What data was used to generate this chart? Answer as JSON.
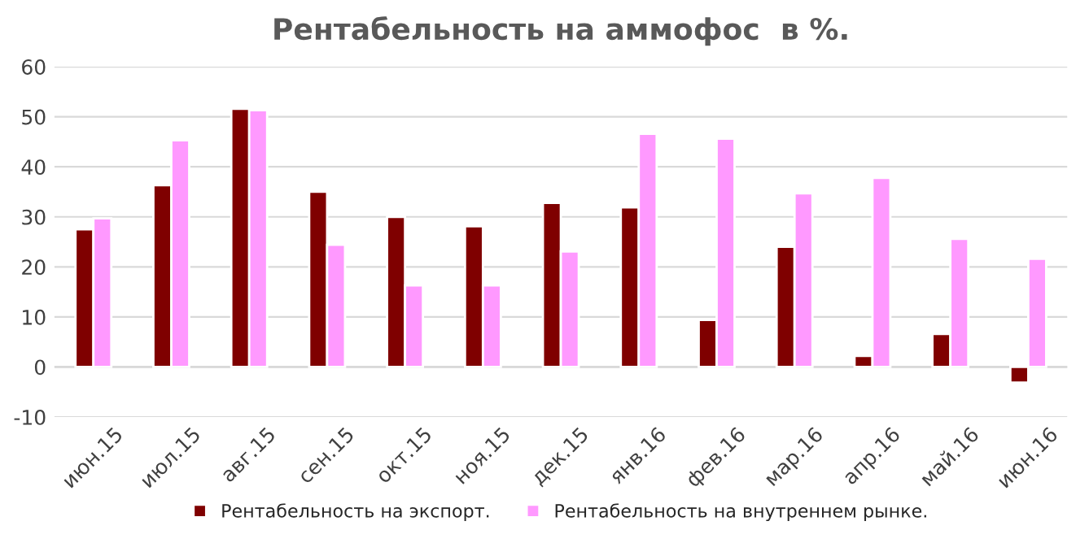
{
  "chart_data": {
    "type": "bar",
    "title": "Рентабельность на аммофос  в %.",
    "categories": [
      "июн.15",
      "июл.15",
      "авг.15",
      "сен.15",
      "окт.15",
      "ноя.15",
      "дек.15",
      "янв.16",
      "фев.16",
      "мар.16",
      "апр.16",
      "май.16",
      "июн.16"
    ],
    "series": [
      {
        "name": "Рентабельность на экспорт.",
        "color": "#7f0000",
        "values": [
          27.5,
          36.3,
          51.6,
          35.0,
          30.0,
          28.1,
          32.8,
          31.9,
          9.4,
          24.0,
          2.2,
          6.6,
          -3.1
        ]
      },
      {
        "name": "Рентабельность на внутреннем рынке.",
        "color": "#ff99ff",
        "values": [
          29.7,
          45.3,
          51.3,
          24.4,
          16.3,
          16.3,
          23.1,
          46.6,
          45.6,
          34.7,
          37.8,
          25.6,
          21.6
        ]
      }
    ],
    "ylim": [
      -10,
      60
    ],
    "yticks": [
      -10,
      0,
      10,
      20,
      30,
      40,
      50,
      60
    ],
    "grid": "y",
    "legend": "bottom"
  }
}
